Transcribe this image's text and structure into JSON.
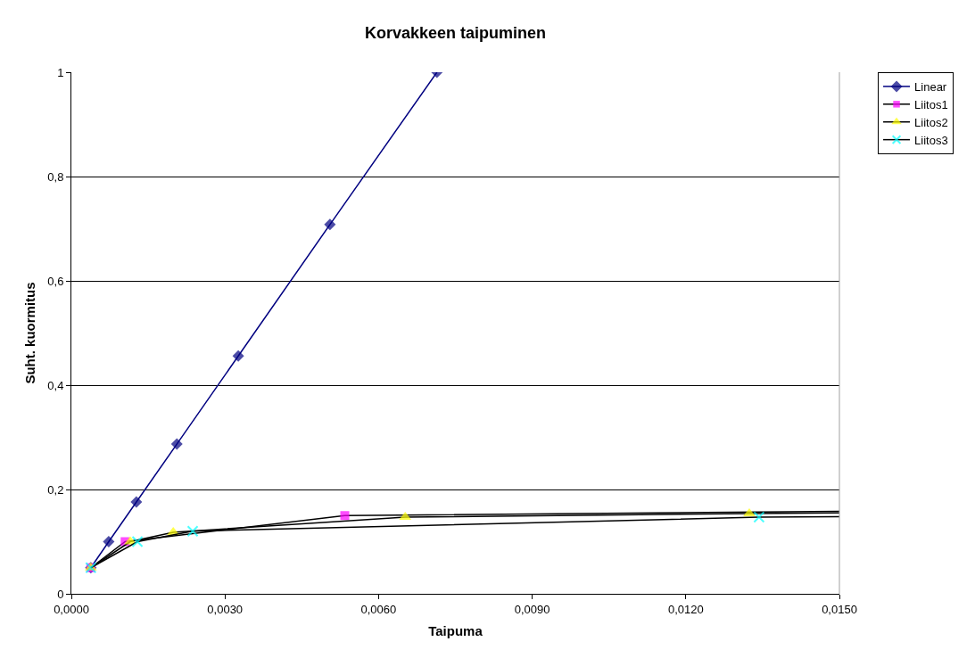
{
  "chart_data": {
    "type": "line",
    "title": "Korvakkeen taipuminen",
    "xlabel": "Taipuma",
    "ylabel": "Suht. kuormitus",
    "series": [
      {
        "name": "Linear",
        "color": "#000080",
        "marker": "diamond",
        "x": [
          0.00038,
          0.00073,
          0.00127,
          0.00206,
          0.00326,
          0.00505,
          0.00714
        ],
        "values": [
          0.05,
          0.1,
          0.176,
          0.287,
          0.456,
          0.708,
          1.0
        ]
      },
      {
        "name": "Liitos1",
        "color": "#000000",
        "colors": [
          "#ff00ff",
          "#ff00ff",
          "#ff00ff",
          "#ff00ff"
        ],
        "marker": "square",
        "x": [
          0.00038,
          0.00105,
          0.00534,
          0.015
        ],
        "values": [
          0.05,
          0.1,
          0.15,
          0.158
        ]
      },
      {
        "name": "Liitos2",
        "color": "#000000",
        "colors": [
          "#ffff00",
          "#ffff00",
          "#ffff00",
          "#ffff00",
          "#ffff00",
          "#ffff00"
        ],
        "marker": "triangle",
        "x": [
          0.00038,
          0.00115,
          0.00199,
          0.00652,
          0.01324,
          0.015
        ],
        "values": [
          0.05,
          0.1,
          0.118,
          0.147,
          0.154,
          0.155
        ]
      },
      {
        "name": "Liitos3",
        "color": "#000000",
        "colors": [
          "#00ffff",
          "#00ffff",
          "#00ffff",
          "#00ffff",
          "#00ffff"
        ],
        "marker": "cross",
        "x": [
          0.00038,
          0.00129,
          0.00237,
          0.01343,
          0.015
        ],
        "values": [
          0.05,
          0.1,
          0.12,
          0.147,
          0.148
        ]
      }
    ],
    "xlim": [
      0,
      0.015
    ],
    "xticks": [
      {
        "value": 0,
        "label": "0,0000"
      },
      {
        "value": 0.003,
        "label": "0,0030"
      },
      {
        "value": 0.006,
        "label": "0,0060"
      },
      {
        "value": 0.009,
        "label": "0,0090"
      },
      {
        "value": 0.012,
        "label": "0,0120"
      },
      {
        "value": 0.015,
        "label": "0,0150"
      }
    ],
    "ylim": [
      0,
      1
    ],
    "yticks": [
      0,
      {
        "value": 0.2,
        "label": "0,2"
      },
      {
        "value": 0.4,
        "label": "0,4"
      },
      {
        "value": 0.6,
        "label": "0,6"
      },
      {
        "value": 0.8,
        "label": "0,8"
      },
      1
    ],
    "grid": "y",
    "legend": "top right",
    "line_style": "solid"
  }
}
